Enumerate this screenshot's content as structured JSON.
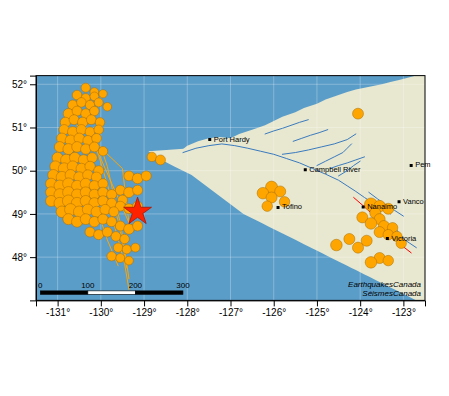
{
  "chart_data": {
    "type": "map",
    "color": "#5b9dc9",
    "grid": true,
    "xlim": [
      -131.5,
      -122.5
    ],
    "ylim": [
      47.0,
      52.2
    ],
    "xticks": [
      {
        "value": -131,
        "label": "-131°"
      },
      {
        "value": -130,
        "label": "-130°"
      },
      {
        "value": -129,
        "label": "-129°"
      },
      {
        "value": -128,
        "label": "-128°"
      },
      {
        "value": -127,
        "label": "-127°"
      },
      {
        "value": -126,
        "label": "-126°"
      },
      {
        "value": -125,
        "label": "-125°"
      },
      {
        "value": -124,
        "label": "-124°"
      },
      {
        "value": -123,
        "label": "-123°"
      }
    ],
    "yticks": [
      {
        "value": 48,
        "label": "48°"
      },
      {
        "value": 49,
        "label": "49°"
      },
      {
        "value": 50,
        "label": "50°"
      },
      {
        "value": 51,
        "label": "51°"
      },
      {
        "value": 52,
        "label": "52°"
      }
    ],
    "annotations": [
      "EarthquakesCanada\nSéismesCanada"
    ],
    "series": [
      {
        "type": "polygon",
        "color": "#e8e8d0",
        "x": [
          -122.5,
          -122.5,
          -122.5,
          -122.6,
          -122.7,
          -122.8,
          -122.9,
          -123.0,
          -123.1,
          -123.2,
          -123.3,
          -123.4,
          -123.5,
          -123.6,
          -123.7,
          -123.8,
          -123.9,
          -124.0,
          -124.1,
          -124.2,
          -124.3,
          -124.5,
          -124.7,
          -124.9,
          -125.1,
          -125.3,
          -125.5,
          -125.7,
          -125.9,
          -126.1,
          -126.3,
          -126.5,
          -126.7,
          -126.9,
          -127.1,
          -127.3,
          -127.5,
          -127.7,
          -127.9,
          -128.1,
          -128.3,
          -128.5,
          -128.7,
          -128.9,
          -127.5,
          -127.2,
          -127.0,
          -126.8,
          -126.5,
          -126.2,
          -126.0,
          -125.8,
          -125.5,
          -125.3,
          -125.0,
          -124.8,
          -124.5,
          -124.3,
          -124.1,
          -123.9,
          -123.7,
          -123.5,
          -123.3,
          -123.1,
          -122.9,
          -122.7,
          -122.5
        ],
        "values": [
          52.2,
          47.0,
          47.0,
          47.0,
          47.0,
          47.05,
          47.1,
          47.15,
          47.2,
          47.25,
          47.3,
          47.35,
          47.4,
          47.45,
          47.5,
          47.55,
          47.6,
          47.65,
          47.7,
          47.75,
          47.8,
          47.9,
          48.0,
          48.1,
          48.2,
          48.3,
          48.4,
          48.5,
          48.6,
          48.7,
          48.8,
          48.9,
          49.0,
          49.15,
          49.3,
          49.45,
          49.6,
          49.75,
          49.9,
          50.0,
          50.1,
          50.2,
          50.3,
          50.45,
          50.55,
          50.65,
          50.75,
          50.85,
          50.95,
          51.05,
          51.15,
          51.25,
          51.35,
          51.45,
          51.55,
          51.65,
          51.75,
          51.82,
          51.88,
          51.92,
          51.96,
          52.0,
          52.05,
          52.1,
          52.15,
          52.2,
          52.2
        ]
      },
      {
        "type": "polygon",
        "color": "#e8e8d0",
        "x": [
          -123.32,
          -123.45,
          -123.55,
          -123.65,
          -123.75,
          -123.85,
          -123.95,
          -124.05,
          -124.2,
          -124.4,
          -124.6,
          -124.8,
          -125.0,
          -125.2,
          -125.35,
          -125.55,
          -125.75,
          -125.95,
          -126.15,
          -126.35,
          -126.6,
          -126.85,
          -127.1,
          -127.35,
          -127.6,
          -127.85,
          -128.1,
          -128.2,
          -128.0,
          -127.75,
          -127.5,
          -127.25,
          -127.0,
          -126.75,
          -126.5,
          -126.25,
          -126.0,
          -125.75,
          -125.5,
          -125.25,
          -125.0,
          -124.75,
          -124.5,
          -124.25,
          -124.0,
          -123.75,
          -123.55,
          -123.4,
          -123.32
        ],
        "values": [
          48.42,
          48.48,
          48.52,
          48.55,
          48.58,
          48.62,
          48.65,
          48.68,
          48.72,
          48.78,
          48.83,
          48.88,
          48.92,
          48.97,
          49.02,
          49.08,
          49.15,
          49.22,
          49.32,
          49.42,
          49.52,
          49.62,
          49.72,
          49.82,
          49.92,
          50.05,
          50.2,
          50.42,
          50.58,
          50.68,
          50.75,
          50.78,
          50.75,
          50.68,
          50.58,
          50.48,
          50.38,
          50.28,
          50.18,
          50.05,
          49.92,
          49.78,
          49.62,
          49.48,
          49.32,
          49.15,
          48.98,
          48.72,
          48.42
        ]
      },
      {
        "type": "polygon",
        "color": "#e8e8d0",
        "x": [
          -127.8,
          -127.6,
          -127.4,
          -127.3,
          -127.5,
          -127.7,
          -127.8
        ],
        "values": [
          50.55,
          50.52,
          50.55,
          50.65,
          50.72,
          50.68,
          50.55
        ]
      },
      {
        "type": "line",
        "color": "#3a7abf",
        "x": [
          -128.1,
          -127.8,
          -127.5,
          -127.2,
          -126.9,
          -126.6,
          -126.3,
          -126.0,
          -125.7,
          -125.4,
          -125.1,
          -124.8,
          -124.5,
          -124.3,
          -124.1,
          -123.9,
          -123.7,
          -123.5,
          -123.3
        ],
        "values": [
          50.42,
          50.52,
          50.58,
          50.62,
          50.58,
          50.52,
          50.45,
          50.38,
          50.28,
          50.18,
          50.05,
          49.92,
          49.78,
          49.65,
          49.52,
          49.38,
          49.25,
          49.12,
          49.0
        ]
      },
      {
        "type": "line",
        "color": "#3a7abf",
        "x": [
          -125.0,
          -124.8,
          -124.6,
          -124.4,
          -124.3,
          -124.2
        ],
        "values": [
          50.12,
          50.22,
          50.32,
          50.42,
          50.52,
          50.62
        ]
      },
      {
        "type": "line",
        "color": "#3a7abf",
        "x": [
          -125.8,
          -125.5,
          -125.2,
          -124.9,
          -124.6,
          -124.3,
          -124.1
        ],
        "values": [
          50.38,
          50.42,
          50.48,
          50.55,
          50.62,
          50.72,
          50.85
        ]
      },
      {
        "type": "line",
        "color": "#3a7abf",
        "x": [
          -124.5,
          -124.3,
          -124.15,
          -124.0
        ],
        "values": [
          49.88,
          50.0,
          50.12,
          50.22
        ]
      },
      {
        "type": "line",
        "color": "#3a7abf",
        "x": [
          -124.7,
          -124.5,
          -124.3,
          -124.1,
          -123.9
        ],
        "values": [
          50.05,
          50.12,
          50.18,
          50.25,
          50.32
        ]
      },
      {
        "type": "line",
        "color": "#3a7abf",
        "x": [
          -123.8,
          -123.6,
          -123.4,
          -123.2,
          -123.0
        ],
        "values": [
          49.5,
          49.35,
          49.2,
          49.08,
          48.95
        ]
      },
      {
        "type": "line",
        "color": "#3a7abf",
        "x": [
          -123.2,
          -123.1,
          -123.0,
          -122.85,
          -122.7
        ],
        "values": [
          48.7,
          48.55,
          48.42,
          48.32,
          48.22
        ]
      },
      {
        "type": "line",
        "color": "#3a7abf",
        "x": [
          -125.55,
          -125.35,
          -125.15,
          -124.95,
          -124.75
        ],
        "values": [
          50.68,
          50.75,
          50.82,
          50.88,
          50.95
        ]
      },
      {
        "type": "line",
        "color": "#3a7abf",
        "x": [
          -126.2,
          -126.0,
          -125.8,
          -125.6,
          -125.4,
          -125.2
        ],
        "values": [
          50.85,
          50.92,
          50.98,
          51.05,
          51.12,
          51.18
        ]
      },
      {
        "type": "line",
        "color": "#FFA500",
        "x": [
          -130.55,
          -130.35,
          -130.15,
          -129.95,
          -129.75,
          -129.6,
          -129.45,
          -129.35
        ],
        "values": [
          51.05,
          50.55,
          50.05,
          49.5,
          48.95,
          48.42,
          47.85,
          47.25
        ]
      },
      {
        "type": "line",
        "color": "#FFA500",
        "x": [
          -130.25,
          -130.05,
          -129.9,
          -129.75,
          -129.6,
          -129.5,
          -129.4
        ],
        "values": [
          50.85,
          50.35,
          49.85,
          49.35,
          48.85,
          48.35,
          47.75
        ]
      },
      {
        "type": "line",
        "color": "#FFA500",
        "x": [
          -130.0,
          -129.85,
          -129.75,
          -129.65,
          -129.55
        ],
        "values": [
          50.55,
          50.1,
          49.65,
          49.2,
          48.8
        ]
      },
      {
        "type": "line",
        "color": "#FFA500",
        "x": [
          -130.55,
          -129.5,
          -129.35,
          -130.25,
          -130.55
        ],
        "values": [
          51.05,
          50.05,
          48.8,
          50.85,
          51.05
        ]
      },
      {
        "type": "line",
        "color": "#FFA500",
        "x": [
          -129.55,
          -129.45,
          -129.35
        ],
        "values": [
          48.8,
          48.2,
          47.5
        ]
      },
      {
        "type": "line",
        "color": "#FFA500",
        "x": [
          -130.05,
          -129.85,
          -129.6
        ],
        "values": [
          49.0,
          48.4,
          47.8
        ]
      },
      {
        "type": "line",
        "color": "red",
        "x": [
          -124.15,
          -123.85,
          -123.55,
          -123.25,
          -123.05,
          -122.82
        ],
        "values": [
          49.38,
          49.12,
          48.82,
          48.52,
          48.28,
          48.1
        ]
      },
      {
        "type": "scatter",
        "marker": "circle",
        "color": "#FFA500",
        "x": [
          -130.35,
          -130.15,
          -130.55,
          -130.35,
          -130.15,
          -129.95,
          -130.65,
          -130.45,
          -130.25,
          -130.05,
          -129.85,
          -130.75,
          -130.55,
          -130.35,
          -130.15,
          -130.82,
          -130.62,
          -130.42,
          -130.22,
          -130.02,
          -130.85,
          -130.65,
          -130.45,
          -130.25,
          -130.05,
          -130.9,
          -130.7,
          -130.5,
          -130.3,
          -130.1,
          -130.95,
          -130.75,
          -130.55,
          -130.35,
          -130.15,
          -129.95,
          -128.82,
          -128.62,
          -131.0,
          -130.8,
          -130.6,
          -130.4,
          -130.2,
          -131.05,
          -130.85,
          -130.65,
          -130.45,
          -130.25,
          -130.05,
          -129.35,
          -129.15,
          -128.95,
          -131.1,
          -130.9,
          -130.7,
          -130.5,
          -130.3,
          -130.1,
          -131.15,
          -130.95,
          -130.75,
          -130.55,
          -130.35,
          -130.15,
          -129.95,
          -129.55,
          -129.35,
          -129.15,
          -131.15,
          -130.95,
          -130.75,
          -130.55,
          -130.35,
          -130.15,
          -129.95,
          -129.75,
          -129.5,
          -131.15,
          -130.95,
          -130.75,
          -130.55,
          -130.35,
          -130.15,
          -129.95,
          -129.75,
          -129.55,
          -129.35,
          -129.15,
          -130.9,
          -130.7,
          -130.5,
          -130.3,
          -130.1,
          -129.9,
          -129.7,
          -130.75,
          -130.55,
          -130.35,
          -130.15,
          -129.95,
          -129.75,
          -129.55,
          -129.35,
          -129.15,
          -130.25,
          -130.05,
          -129.85,
          -129.65,
          -129.45,
          -129.6,
          -129.4,
          -129.2,
          -129.75,
          -129.55,
          -129.35,
          -124.05,
          -126.05,
          -125.85,
          -126.25,
          -126.05,
          -125.75,
          -126.15,
          -123.75,
          -123.55,
          -123.35,
          -123.65,
          -123.95,
          -123.55,
          -123.75,
          -123.45,
          -123.25,
          -123.55,
          -123.35,
          -123.15,
          -124.25,
          -123.85,
          -123.05,
          -124.55,
          -124.05,
          -123.55,
          -123.35,
          -123.75
        ],
        "values": [
          51.92,
          51.82,
          51.75,
          51.68,
          51.72,
          51.78,
          51.52,
          51.58,
          51.52,
          51.58,
          51.48,
          51.32,
          51.38,
          51.32,
          51.38,
          51.12,
          51.18,
          51.12,
          51.18,
          51.12,
          50.95,
          50.9,
          50.95,
          50.9,
          50.95,
          50.75,
          50.7,
          50.75,
          50.7,
          50.75,
          50.55,
          50.5,
          50.55,
          50.5,
          50.55,
          50.45,
          50.32,
          50.25,
          50.3,
          50.25,
          50.3,
          50.25,
          50.3,
          50.1,
          50.05,
          50.1,
          50.05,
          50.1,
          50.0,
          49.88,
          49.82,
          49.88,
          49.9,
          49.85,
          49.9,
          49.85,
          49.9,
          49.85,
          49.7,
          49.65,
          49.7,
          49.65,
          49.7,
          49.65,
          49.7,
          49.55,
          49.5,
          49.55,
          49.5,
          49.45,
          49.5,
          49.45,
          49.5,
          49.45,
          49.5,
          49.45,
          49.32,
          49.3,
          49.25,
          49.3,
          49.25,
          49.3,
          49.25,
          49.3,
          49.25,
          49.18,
          49.12,
          49.18,
          49.05,
          49.1,
          49.05,
          49.1,
          49.05,
          49.1,
          49.05,
          48.88,
          48.82,
          48.88,
          48.82,
          48.88,
          48.82,
          48.72,
          48.65,
          48.72,
          48.58,
          48.52,
          48.58,
          48.48,
          48.42,
          48.22,
          48.18,
          48.22,
          48.02,
          47.98,
          47.92,
          51.32,
          49.62,
          49.52,
          49.48,
          49.38,
          49.28,
          49.18,
          49.22,
          49.18,
          49.12,
          49.02,
          48.92,
          48.88,
          48.78,
          48.72,
          48.68,
          48.58,
          48.52,
          48.48,
          48.42,
          48.38,
          48.32,
          48.28,
          48.22,
          47.98,
          47.92,
          47.88
        ],
        "sizes": [
          55,
          50,
          60,
          55,
          50,
          45,
          65,
          60,
          58,
          52,
          48,
          70,
          65,
          63,
          58,
          68,
          65,
          70,
          63,
          58,
          68,
          72,
          68,
          63,
          58,
          72,
          78,
          72,
          65,
          62,
          75,
          80,
          75,
          70,
          65,
          58,
          58,
          65,
          78,
          85,
          78,
          72,
          68,
          80,
          88,
          80,
          75,
          70,
          65,
          65,
          72,
          65,
          80,
          88,
          80,
          78,
          72,
          70,
          80,
          88,
          88,
          80,
          78,
          72,
          65,
          65,
          72,
          65,
          80,
          88,
          88,
          80,
          78,
          72,
          70,
          65,
          65,
          80,
          88,
          95,
          88,
          80,
          78,
          72,
          65,
          65,
          65,
          65,
          88,
          95,
          88,
          80,
          78,
          72,
          65,
          80,
          80,
          78,
          72,
          70,
          65,
          65,
          72,
          65,
          65,
          65,
          65,
          62,
          58,
          58,
          55,
          52,
          58,
          52,
          50,
          78,
          95,
          80,
          88,
          80,
          72,
          72,
          110,
          88,
          80,
          80,
          80,
          80,
          88,
          80,
          72,
          80,
          72,
          70,
          80,
          80,
          70,
          88,
          80,
          80,
          72,
          88
        ]
      },
      {
        "type": "scatter",
        "marker": "star",
        "color": "#FF2200",
        "x": [
          -129.15
        ],
        "values": [
          49.05
        ],
        "sizes": [
          120
        ]
      },
      {
        "type": "scatter",
        "marker": "square",
        "color": "black",
        "x": [
          -127.48,
          -125.27,
          -125.9,
          -123.93,
          -123.1,
          -123.37,
          -122.82
        ],
        "values": [
          50.72,
          50.02,
          49.15,
          49.16,
          49.28,
          48.43,
          50.12
        ],
        "labels": [
          "Port Hardy",
          "Campbell River",
          "Tofino",
          "Nanaimo",
          "Vanco",
          "Victoria",
          "Pem"
        ]
      },
      {
        "type": "scale_bar",
        "colors": [
          "black",
          "white",
          "black"
        ],
        "x": [
          -131.4,
          -130.3,
          -129.2,
          -128.1
        ],
        "y": 47.18,
        "labels": [
          "0",
          "100",
          "200",
          "300"
        ]
      }
    ]
  }
}
